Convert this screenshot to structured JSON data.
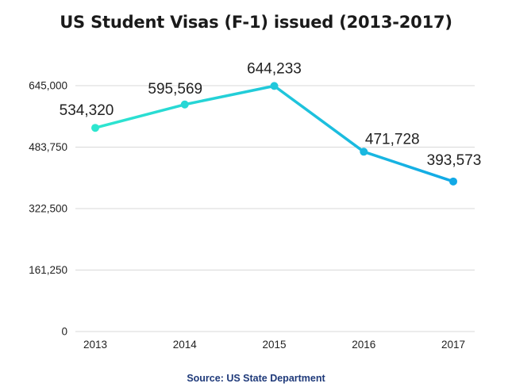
{
  "chart_data": {
    "type": "line",
    "title": "US Student Visas (F-1) issued (2013-2017)",
    "xlabel": "",
    "ylabel": "",
    "categories": [
      "2013",
      "2014",
      "2015",
      "2016",
      "2017"
    ],
    "series": [
      {
        "values": [
          534320,
          595569,
          644233,
          471728,
          393573
        ]
      }
    ],
    "data_labels": [
      "534,320",
      "595,569",
      "644,233",
      "471,728",
      "393,573"
    ],
    "y_ticks": [
      0,
      161250,
      322500,
      483750,
      645000
    ],
    "y_tick_labels": [
      "0",
      "161,250",
      "322,500",
      "483,750",
      "645,000"
    ],
    "ylim": [
      0,
      645000
    ],
    "grid": true,
    "legend": "none",
    "source": "Source: US State Department",
    "colors": {
      "line_start": "#2ee6cf",
      "line_end": "#12a9e6",
      "grid": "#d9d9d9",
      "source_text": "#1f3a7a"
    }
  }
}
